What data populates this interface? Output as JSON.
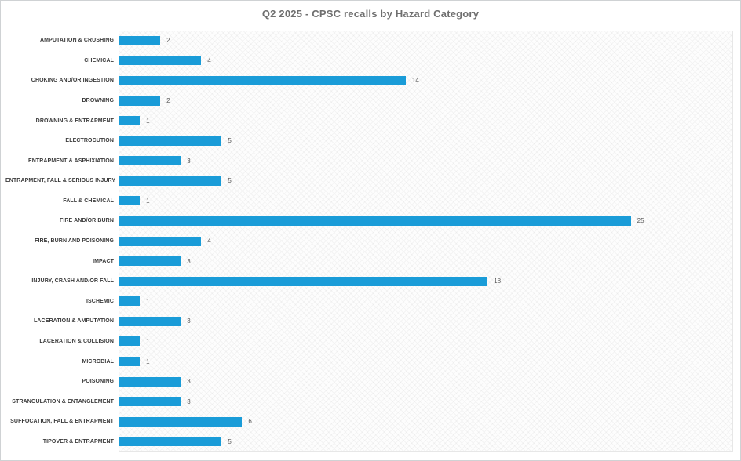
{
  "chart_data": {
    "type": "bar",
    "orientation": "horizontal",
    "title": "Q2 2025 - CPSC recalls by Hazard Category",
    "categories": [
      "AMPUTATION & CRUSHING",
      "CHEMICAL",
      "CHOKING AND/OR INGESTION",
      "DROWNING",
      "DROWNING & ENTRAPMENT",
      "ELECTROCUTION",
      "ENTRAPMENT & ASPHIXIATION",
      "ENTRAPMENT, FALL & SERIOUS INJURY",
      "FALL & CHEMICAL",
      "FIRE AND/OR BURN",
      "FIRE, BURN AND POISONING",
      "IMPACT",
      "INJURY, CRASH AND/OR FALL",
      "ISCHEMIC",
      "LACERATION & AMPUTATION",
      "LACERATION & COLLISION",
      "MICROBIAL",
      "POISONING",
      "STRANGULATION & ENTANGLEMENT",
      "SUFFOCATION, FALL & ENTRAPMENT",
      "TIPOVER & ENTRAPMENT"
    ],
    "values": [
      2,
      4,
      14,
      2,
      1,
      5,
      3,
      5,
      1,
      25,
      4,
      3,
      18,
      1,
      3,
      1,
      1,
      3,
      3,
      6,
      5
    ],
    "xlabel": "",
    "ylabel": "",
    "xlim": [
      0,
      30
    ],
    "grid": false,
    "legend": false,
    "data_labels": true,
    "colors": {
      "bar": "#1a9cd8",
      "title": "#6f6f6f",
      "category_label": "#3b3b3b",
      "value_label": "#595959"
    }
  }
}
